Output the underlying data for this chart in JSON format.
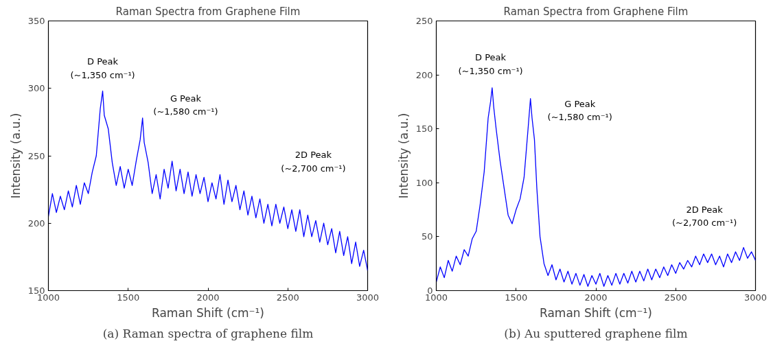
{
  "chart_data": [
    {
      "type": "line",
      "title": "Raman Spectra from Graphene Film",
      "xlabel": "Raman Shift (cm⁻¹)",
      "ylabel": "Intensity (a.u.)",
      "xlim": [
        1000,
        3000
      ],
      "xticks": [
        1000,
        1500,
        2000,
        2500,
        3000
      ],
      "ylim": [
        150,
        350
      ],
      "yticks": [
        150,
        200,
        250,
        300,
        350
      ],
      "grid": false,
      "marker": "none",
      "line_style": "solid",
      "x": [
        1000,
        1025,
        1050,
        1075,
        1100,
        1125,
        1150,
        1175,
        1200,
        1225,
        1250,
        1275,
        1300,
        1325,
        1340,
        1350,
        1375,
        1400,
        1425,
        1450,
        1475,
        1500,
        1525,
        1550,
        1575,
        1590,
        1600,
        1625,
        1650,
        1675,
        1700,
        1725,
        1750,
        1775,
        1800,
        1825,
        1850,
        1875,
        1900,
        1925,
        1950,
        1975,
        2000,
        2025,
        2050,
        2075,
        2100,
        2125,
        2150,
        2175,
        2200,
        2225,
        2250,
        2275,
        2300,
        2325,
        2350,
        2375,
        2400,
        2425,
        2450,
        2475,
        2500,
        2525,
        2550,
        2575,
        2600,
        2625,
        2650,
        2675,
        2700,
        2725,
        2750,
        2775,
        2800,
        2825,
        2850,
        2875,
        2900,
        2925,
        2950,
        2975,
        3000
      ],
      "series": [
        {
          "color": "#0000ff",
          "values": [
            205,
            222,
            208,
            220,
            210,
            224,
            212,
            228,
            214,
            230,
            222,
            238,
            250,
            285,
            298,
            280,
            270,
            245,
            228,
            242,
            226,
            240,
            228,
            246,
            262,
            278,
            260,
            245,
            222,
            236,
            218,
            240,
            226,
            246,
            224,
            240,
            222,
            238,
            220,
            236,
            222,
            234,
            216,
            230,
            218,
            236,
            214,
            232,
            216,
            228,
            210,
            224,
            206,
            220,
            204,
            218,
            200,
            214,
            198,
            214,
            200,
            212,
            196,
            210,
            194,
            210,
            190,
            206,
            190,
            202,
            186,
            200,
            184,
            196,
            178,
            194,
            176,
            190,
            170,
            186,
            168,
            180,
            165
          ]
        }
      ],
      "annotations": [
        "D Peak\n(~1,350 cm⁻¹)",
        "G Peak\n(~1,580 cm⁻¹)",
        "2D Peak\n(~2,700 cm⁻¹)",
        "(a) Raman spectra of graphene film"
      ]
    },
    {
      "type": "line",
      "title": "Raman Spectra from Graphene Film",
      "xlabel": "Raman Shift (cm⁻¹)",
      "ylabel": "Intensity (a.u.)",
      "xlim": [
        1000,
        3000
      ],
      "xticks": [
        1000,
        1500,
        2000,
        2500,
        3000
      ],
      "ylim": [
        0,
        250
      ],
      "yticks": [
        0,
        50,
        100,
        150,
        200,
        250
      ],
      "grid": false,
      "marker": "none",
      "line_style": "solid",
      "x": [
        1000,
        1025,
        1050,
        1075,
        1100,
        1125,
        1150,
        1175,
        1200,
        1225,
        1250,
        1275,
        1300,
        1325,
        1340,
        1350,
        1360,
        1375,
        1400,
        1425,
        1450,
        1475,
        1500,
        1525,
        1550,
        1575,
        1590,
        1600,
        1615,
        1630,
        1650,
        1675,
        1700,
        1725,
        1750,
        1775,
        1800,
        1825,
        1850,
        1875,
        1900,
        1925,
        1950,
        1975,
        2000,
        2025,
        2050,
        2075,
        2100,
        2125,
        2150,
        2175,
        2200,
        2225,
        2250,
        2275,
        2300,
        2325,
        2350,
        2375,
        2400,
        2425,
        2450,
        2475,
        2500,
        2525,
        2550,
        2575,
        2600,
        2625,
        2650,
        2675,
        2700,
        2725,
        2750,
        2775,
        2800,
        2825,
        2850,
        2875,
        2900,
        2925,
        2950,
        2975,
        3000
      ],
      "series": [
        {
          "color": "#0000ff",
          "values": [
            8,
            22,
            12,
            28,
            18,
            32,
            24,
            38,
            32,
            48,
            55,
            80,
            110,
            160,
            175,
            188,
            170,
            150,
            120,
            95,
            70,
            62,
            75,
            85,
            105,
            150,
            178,
            160,
            140,
            95,
            50,
            25,
            14,
            24,
            10,
            20,
            8,
            18,
            6,
            16,
            5,
            15,
            4,
            14,
            6,
            16,
            4,
            14,
            5,
            16,
            6,
            16,
            7,
            18,
            8,
            18,
            9,
            20,
            10,
            20,
            12,
            22,
            14,
            24,
            16,
            26,
            20,
            28,
            22,
            32,
            24,
            34,
            26,
            34,
            24,
            32,
            22,
            34,
            26,
            36,
            28,
            40,
            30,
            36,
            28
          ]
        }
      ],
      "annotations": [
        "D Peak\n(~1,350 cm⁻¹)",
        "G Peak\n(~1,580 cm⁻¹)",
        "2D Peak\n(~2,700 cm⁻¹)",
        "(b) Au sputtered graphene film"
      ]
    }
  ]
}
